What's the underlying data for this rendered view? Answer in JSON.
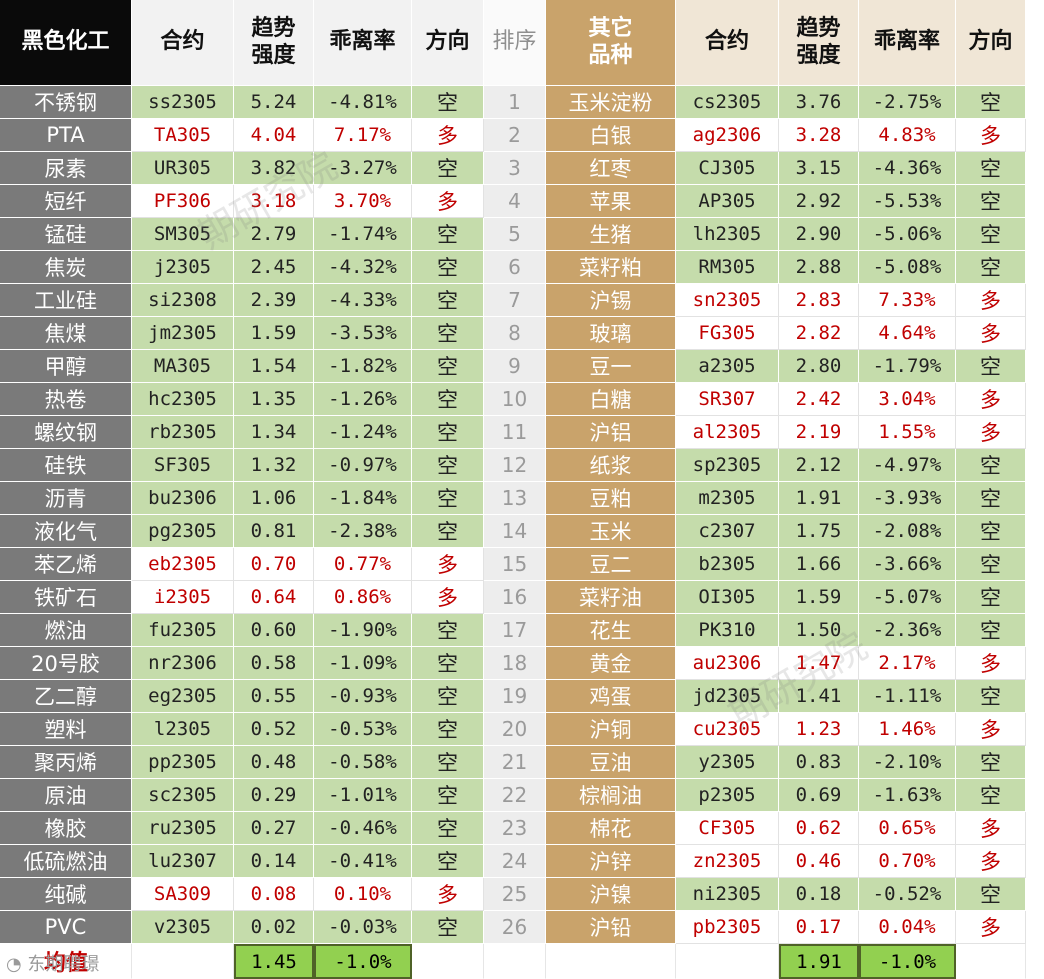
{
  "headers": {
    "left_group": "黑色化工",
    "contract": "合约",
    "trend": "趋势强度",
    "deviation": "乖离率",
    "direction": "方向",
    "rank": "排序",
    "right_group": "其它品种",
    "contract_r": "合约",
    "trend_r": "趋势强度",
    "deviation_r": "乖离率",
    "direction_r": "方向"
  },
  "left": [
    {
      "name": "不锈钢",
      "code": "ss2305",
      "trend": "5.24",
      "dev": "-4.81%",
      "dir": "空",
      "style": "green"
    },
    {
      "name": "PTA",
      "code": "TA305",
      "trend": "4.04",
      "dev": "7.17%",
      "dir": "多",
      "style": "white"
    },
    {
      "name": "尿素",
      "code": "UR305",
      "trend": "3.82",
      "dev": "-3.27%",
      "dir": "空",
      "style": "green"
    },
    {
      "name": "短纤",
      "code": "PF306",
      "trend": "3.18",
      "dev": "3.70%",
      "dir": "多",
      "style": "white"
    },
    {
      "name": "锰硅",
      "code": "SM305",
      "trend": "2.79",
      "dev": "-1.74%",
      "dir": "空",
      "style": "green"
    },
    {
      "name": "焦炭",
      "code": "j2305",
      "trend": "2.45",
      "dev": "-4.32%",
      "dir": "空",
      "style": "green"
    },
    {
      "name": "工业硅",
      "code": "si2308",
      "trend": "2.39",
      "dev": "-4.33%",
      "dir": "空",
      "style": "green"
    },
    {
      "name": "焦煤",
      "code": "jm2305",
      "trend": "1.59",
      "dev": "-3.53%",
      "dir": "空",
      "style": "green"
    },
    {
      "name": "甲醇",
      "code": "MA305",
      "trend": "1.54",
      "dev": "-1.82%",
      "dir": "空",
      "style": "green"
    },
    {
      "name": "热卷",
      "code": "hc2305",
      "trend": "1.35",
      "dev": "-1.26%",
      "dir": "空",
      "style": "green"
    },
    {
      "name": "螺纹钢",
      "code": "rb2305",
      "trend": "1.34",
      "dev": "-1.24%",
      "dir": "空",
      "style": "green"
    },
    {
      "name": "硅铁",
      "code": "SF305",
      "trend": "1.32",
      "dev": "-0.97%",
      "dir": "空",
      "style": "green"
    },
    {
      "name": "沥青",
      "code": "bu2306",
      "trend": "1.06",
      "dev": "-1.84%",
      "dir": "空",
      "style": "green"
    },
    {
      "name": "液化气",
      "code": "pg2305",
      "trend": "0.81",
      "dev": "-2.38%",
      "dir": "空",
      "style": "green"
    },
    {
      "name": "苯乙烯",
      "code": "eb2305",
      "trend": "0.70",
      "dev": "0.77%",
      "dir": "多",
      "style": "white"
    },
    {
      "name": "铁矿石",
      "code": "i2305",
      "trend": "0.64",
      "dev": "0.86%",
      "dir": "多",
      "style": "white"
    },
    {
      "name": "燃油",
      "code": "fu2305",
      "trend": "0.60",
      "dev": "-1.90%",
      "dir": "空",
      "style": "green"
    },
    {
      "name": "20号胶",
      "code": "nr2306",
      "trend": "0.58",
      "dev": "-1.09%",
      "dir": "空",
      "style": "green"
    },
    {
      "name": "乙二醇",
      "code": "eg2305",
      "trend": "0.55",
      "dev": "-0.93%",
      "dir": "空",
      "style": "green"
    },
    {
      "name": "塑料",
      "code": "l2305",
      "trend": "0.52",
      "dev": "-0.53%",
      "dir": "空",
      "style": "green"
    },
    {
      "name": "聚丙烯",
      "code": "pp2305",
      "trend": "0.48",
      "dev": "-0.58%",
      "dir": "空",
      "style": "green"
    },
    {
      "name": "原油",
      "code": "sc2305",
      "trend": "0.29",
      "dev": "-1.01%",
      "dir": "空",
      "style": "green"
    },
    {
      "name": "橡胶",
      "code": "ru2305",
      "trend": "0.27",
      "dev": "-0.46%",
      "dir": "空",
      "style": "green"
    },
    {
      "name": "低硫燃油",
      "code": "lu2307",
      "trend": "0.14",
      "dev": "-0.41%",
      "dir": "空",
      "style": "green"
    },
    {
      "name": "纯碱",
      "code": "SA309",
      "trend": "0.08",
      "dev": "0.10%",
      "dir": "多",
      "style": "white"
    },
    {
      "name": "PVC",
      "code": "v2305",
      "trend": "0.02",
      "dev": "-0.03%",
      "dir": "空",
      "style": "green"
    }
  ],
  "right": [
    {
      "name": "玉米淀粉",
      "code": "cs2305",
      "trend": "3.76",
      "dev": "-2.75%",
      "dir": "空",
      "style": "green"
    },
    {
      "name": "白银",
      "code": "ag2306",
      "trend": "3.28",
      "dev": "4.83%",
      "dir": "多",
      "style": "white"
    },
    {
      "name": "红枣",
      "code": "CJ305",
      "trend": "3.15",
      "dev": "-4.36%",
      "dir": "空",
      "style": "green"
    },
    {
      "name": "苹果",
      "code": "AP305",
      "trend": "2.92",
      "dev": "-5.53%",
      "dir": "空",
      "style": "green"
    },
    {
      "name": "生猪",
      "code": "lh2305",
      "trend": "2.90",
      "dev": "-5.06%",
      "dir": "空",
      "style": "green"
    },
    {
      "name": "菜籽粕",
      "code": "RM305",
      "trend": "2.88",
      "dev": "-5.08%",
      "dir": "空",
      "style": "green"
    },
    {
      "name": "沪锡",
      "code": "sn2305",
      "trend": "2.83",
      "dev": "7.33%",
      "dir": "多",
      "style": "white"
    },
    {
      "name": "玻璃",
      "code": "FG305",
      "trend": "2.82",
      "dev": "4.64%",
      "dir": "多",
      "style": "white"
    },
    {
      "name": "豆一",
      "code": "a2305",
      "trend": "2.80",
      "dev": "-1.79%",
      "dir": "空",
      "style": "green"
    },
    {
      "name": "白糖",
      "code": "SR307",
      "trend": "2.42",
      "dev": "3.04%",
      "dir": "多",
      "style": "white"
    },
    {
      "name": "沪铝",
      "code": "al2305",
      "trend": "2.19",
      "dev": "1.55%",
      "dir": "多",
      "style": "white"
    },
    {
      "name": "纸浆",
      "code": "sp2305",
      "trend": "2.12",
      "dev": "-4.97%",
      "dir": "空",
      "style": "green"
    },
    {
      "name": "豆粕",
      "code": "m2305",
      "trend": "1.91",
      "dev": "-3.93%",
      "dir": "空",
      "style": "green"
    },
    {
      "name": "玉米",
      "code": "c2307",
      "trend": "1.75",
      "dev": "-2.08%",
      "dir": "空",
      "style": "green"
    },
    {
      "name": "豆二",
      "code": "b2305",
      "trend": "1.66",
      "dev": "-3.66%",
      "dir": "空",
      "style": "green"
    },
    {
      "name": "菜籽油",
      "code": "OI305",
      "trend": "1.59",
      "dev": "-5.07%",
      "dir": "空",
      "style": "green"
    },
    {
      "name": "花生",
      "code": "PK310",
      "trend": "1.50",
      "dev": "-2.36%",
      "dir": "空",
      "style": "green"
    },
    {
      "name": "黄金",
      "code": "au2306",
      "trend": "1.47",
      "dev": "2.17%",
      "dir": "多",
      "style": "white"
    },
    {
      "name": "鸡蛋",
      "code": "jd2305",
      "trend": "1.41",
      "dev": "-1.11%",
      "dir": "空",
      "style": "green"
    },
    {
      "name": "沪铜",
      "code": "cu2305",
      "trend": "1.23",
      "dev": "1.46%",
      "dir": "多",
      "style": "white"
    },
    {
      "name": "豆油",
      "code": "y2305",
      "trend": "0.83",
      "dev": "-2.10%",
      "dir": "空",
      "style": "green"
    },
    {
      "name": "棕榈油",
      "code": "p2305",
      "trend": "0.69",
      "dev": "-1.63%",
      "dir": "空",
      "style": "green"
    },
    {
      "name": "棉花",
      "code": "CF305",
      "trend": "0.62",
      "dev": "0.65%",
      "dir": "多",
      "style": "white"
    },
    {
      "name": "沪锌",
      "code": "zn2305",
      "trend": "0.46",
      "dev": "0.70%",
      "dir": "多",
      "style": "white"
    },
    {
      "name": "沪镍",
      "code": "ni2305",
      "trend": "0.18",
      "dev": "-0.52%",
      "dir": "空",
      "style": "green"
    },
    {
      "name": "沪铅",
      "code": "pb2305",
      "trend": "0.17",
      "dev": "0.04%",
      "dir": "多",
      "style": "white"
    }
  ],
  "footer": {
    "label": "均值",
    "left_trend": "1.45",
    "left_dev": "-1.0%",
    "right_trend": "1.91",
    "right_dev": "-1.0%"
  },
  "overlay": {
    "logo_text": "东期聘璟",
    "watermark_text": "期研究院"
  },
  "colors": {
    "green_cell": "#c5dcab",
    "red_text": "#c00000",
    "gold": "#c9a36b",
    "gray_name": "#7a7a7a",
    "footer_green": "#92d050"
  }
}
